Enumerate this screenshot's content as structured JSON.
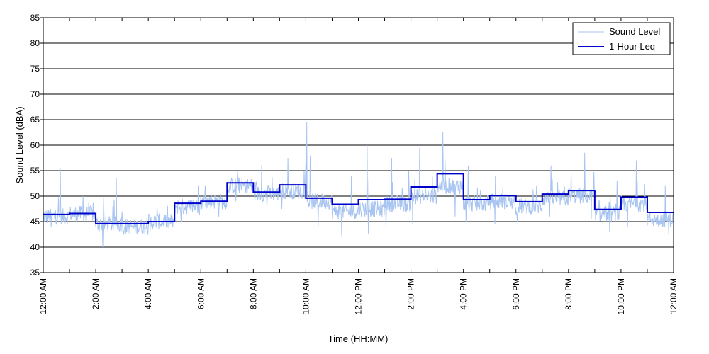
{
  "chart_data": {
    "type": "line",
    "xlabel": "Time (HH:MM)",
    "ylabel": "Sound Level (dBA)",
    "ylim": [
      35,
      85
    ],
    "yticks": [
      35,
      40,
      45,
      50,
      55,
      60,
      65,
      70,
      75,
      80,
      85
    ],
    "xlim_hours": [
      0,
      24
    ],
    "xticks": [
      {
        "hour": 0,
        "label": "12:00 AM"
      },
      {
        "hour": 2,
        "label": "2:00 AM"
      },
      {
        "hour": 4,
        "label": "4:00 AM"
      },
      {
        "hour": 6,
        "label": "6:00 AM"
      },
      {
        "hour": 8,
        "label": "8:00 AM"
      },
      {
        "hour": 10,
        "label": "10:00 AM"
      },
      {
        "hour": 12,
        "label": "12:00 PM"
      },
      {
        "hour": 14,
        "label": "2:00 PM"
      },
      {
        "hour": 16,
        "label": "4:00 PM"
      },
      {
        "hour": 18,
        "label": "6:00 PM"
      },
      {
        "hour": 20,
        "label": "8:00 PM"
      },
      {
        "hour": 22,
        "label": "10:00 PM"
      },
      {
        "hour": 24,
        "label": "12:00 AM"
      }
    ],
    "grid": "horizontal",
    "legend_position": "top-right",
    "series": [
      {
        "name": "Sound Level",
        "color": "#a8c4f0",
        "style": "thin-line",
        "hourly_mean": [
          46.0,
          46.5,
          44.5,
          44.0,
          45.0,
          48.0,
          49.0,
          52.0,
          50.5,
          51.0,
          49.0,
          47.0,
          47.5,
          48.5,
          50.0,
          52.0,
          48.5,
          49.0,
          48.0,
          49.5,
          50.0,
          46.5,
          48.5,
          45.5
        ],
        "hourly_peak": [
          55.5,
          50.0,
          53.5,
          47.0,
          48.0,
          52.0,
          52.0,
          55.0,
          56.0,
          57.5,
          64.5,
          54.0,
          60.0,
          57.5,
          59.5,
          62.5,
          56.0,
          54.0,
          52.0,
          56.0,
          58.5,
          53.0,
          57.0,
          52.0
        ],
        "hourly_min": [
          44.0,
          44.5,
          40.0,
          42.5,
          43.0,
          45.0,
          46.0,
          49.0,
          48.0,
          47.5,
          44.0,
          42.0,
          42.5,
          44.0,
          44.5,
          46.0,
          45.0,
          44.5,
          45.0,
          46.0,
          45.5,
          43.0,
          44.0,
          42.5
        ]
      },
      {
        "name": "1-Hour Leq",
        "color": "#0000cc",
        "style": "step",
        "x_hours": [
          0,
          1,
          2,
          3,
          4,
          5,
          6,
          7,
          8,
          9,
          10,
          11,
          12,
          13,
          14,
          15,
          16,
          17,
          18,
          19,
          20,
          21,
          22,
          23
        ],
        "values": [
          46.4,
          46.6,
          44.6,
          44.6,
          45.0,
          48.6,
          49.0,
          52.6,
          50.8,
          52.2,
          49.6,
          48.4,
          49.3,
          49.4,
          51.8,
          54.4,
          49.3,
          50.1,
          48.9,
          50.4,
          51.1,
          47.4,
          49.8,
          46.8
        ]
      }
    ]
  }
}
